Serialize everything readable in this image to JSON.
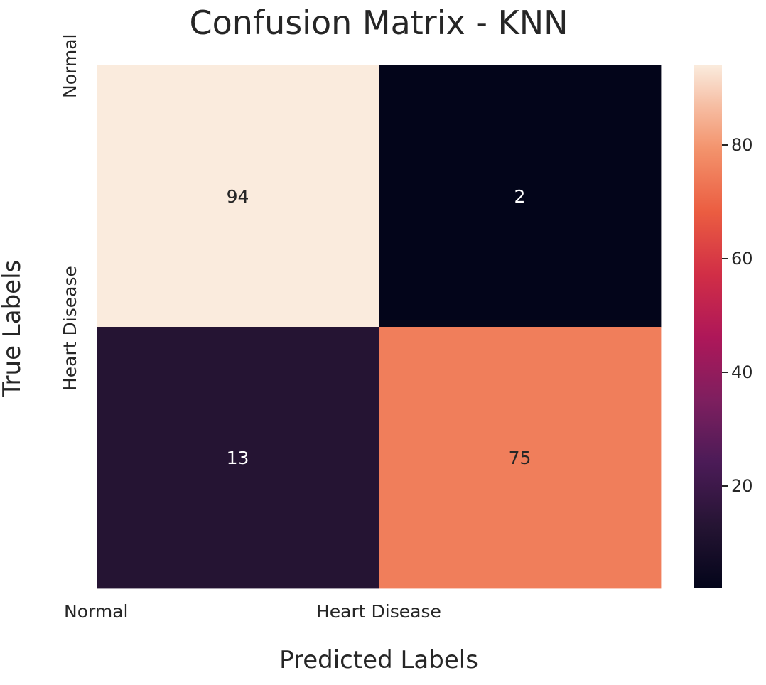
{
  "chart_data": {
    "type": "heatmap",
    "title": "Confusion Matrix - KNN",
    "xlabel": "Predicted Labels",
    "ylabel": "True Labels",
    "x_categories": [
      "Normal",
      "Heart Disease"
    ],
    "y_categories": [
      "Normal",
      "Heart Disease"
    ],
    "values": [
      [
        94,
        2
      ],
      [
        13,
        75
      ]
    ],
    "colormap": "rocket",
    "colorbar": {
      "min": 2,
      "max": 94,
      "ticks": [
        20,
        40,
        60,
        80
      ]
    },
    "grid": false,
    "annotations": true,
    "annotation_colors": {
      "light_text": "#ffffff",
      "dark_text": "#262626"
    }
  }
}
